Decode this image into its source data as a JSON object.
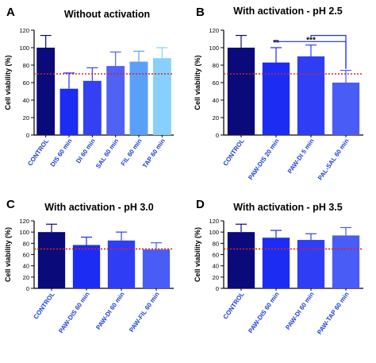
{
  "figure": {
    "reference_line_color": "#e0201b",
    "axis_label_color": "#1a3fd6"
  },
  "chart_data": [
    {
      "panel_letter": "A",
      "type": "bar",
      "title": "Without activation",
      "ylabel": "Cell viability (%)",
      "xlabel": "",
      "ylim": [
        0,
        120
      ],
      "yticks": [
        "0",
        "20",
        "40",
        "60",
        "80",
        "100",
        "120"
      ],
      "reference_line": 70,
      "grid": false,
      "categories": [
        "CONTROL",
        "DIS 60 min",
        "DI 60 min",
        "SAL 60 min",
        "FIL 60 min",
        "TAP 60 min"
      ],
      "values": [
        100,
        53,
        62,
        79,
        84,
        88
      ],
      "errors": [
        14,
        18,
        15,
        16,
        12,
        12
      ],
      "colors": [
        "#0a0a7a",
        "#1c2cf2",
        "#3340f4",
        "#5062f4",
        "#5aa0f8",
        "#86d0fb"
      ],
      "annotations": []
    },
    {
      "panel_letter": "B",
      "type": "bar",
      "title": "With activation - pH 2.5",
      "ylabel": "Cell viability (%)",
      "xlabel": "",
      "ylim": [
        0,
        120
      ],
      "yticks": [
        "0",
        "20",
        "40",
        "60",
        "80",
        "100",
        "120"
      ],
      "reference_line": 70,
      "grid": false,
      "categories": [
        "CONTROL",
        "PAW-DIS 20 min",
        "PAW-DI 5 min",
        "PAL-SAL 60 min"
      ],
      "values": [
        100,
        83,
        90,
        60
      ],
      "errors": [
        14,
        17,
        13,
        14
      ],
      "colors": [
        "#0a0a7a",
        "#1c2cf2",
        "#2f3ef4",
        "#4a5cf6"
      ],
      "annotations": [
        {
          "category_index": 1,
          "text": "**"
        },
        {
          "category_index": 2,
          "text": "***"
        }
      ],
      "brackets": [
        {
          "from": 1,
          "to": 3,
          "y": 107
        },
        {
          "from": 2,
          "to": 3,
          "y": 114
        }
      ]
    },
    {
      "panel_letter": "C",
      "type": "bar",
      "title": "With activation - pH 3.0",
      "ylabel": "Cell viability (%)",
      "xlabel": "",
      "ylim": [
        0,
        120
      ],
      "yticks": [
        "0",
        "20",
        "40",
        "60",
        "80",
        "100",
        "120"
      ],
      "reference_line": 70,
      "grid": false,
      "categories": [
        "CONTROL",
        "PAW-DIS 60 min",
        "PAW-DI 60 min",
        "PAW-FIL 60 min"
      ],
      "values": [
        100,
        77,
        85,
        69
      ],
      "errors": [
        14,
        14,
        15,
        12
      ],
      "colors": [
        "#0a0a7a",
        "#1c2cf2",
        "#2f3ef4",
        "#4a5cf6"
      ],
      "annotations": []
    },
    {
      "panel_letter": "D",
      "type": "bar",
      "title": "With activation - pH 3.5",
      "ylabel": "Cell viability (%)",
      "xlabel": "",
      "ylim": [
        0,
        120
      ],
      "yticks": [
        "0",
        "20",
        "40",
        "60",
        "80",
        "100",
        "120"
      ],
      "reference_line": 70,
      "grid": false,
      "categories": [
        "CONTROL",
        "PAW-DIS 60 min",
        "PAW-DI 60 min",
        "PAW-TAP 60 min"
      ],
      "values": [
        100,
        90,
        86,
        94
      ],
      "errors": [
        14,
        13,
        11,
        14
      ],
      "colors": [
        "#0a0a7a",
        "#1c2cf2",
        "#2f3ef4",
        "#4a5cf6"
      ],
      "annotations": []
    }
  ]
}
